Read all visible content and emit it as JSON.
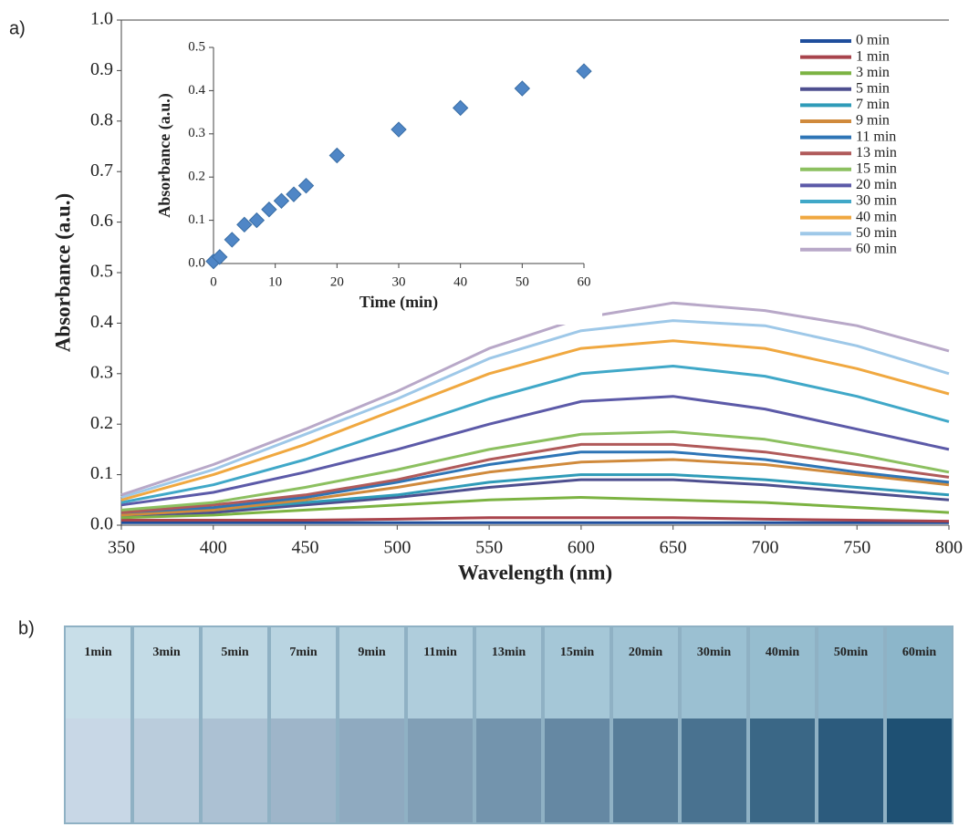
{
  "panels": {
    "a": "a)",
    "b": "b)"
  },
  "chart_data": [
    {
      "type": "line",
      "xlabel": "Wavelength (nm)",
      "ylabel": "Absorbance (a.u.)",
      "x": [
        350,
        400,
        450,
        500,
        550,
        600,
        650,
        700,
        750,
        800
      ],
      "xlim": [
        350,
        800
      ],
      "xticks": [
        350,
        400,
        450,
        500,
        550,
        600,
        650,
        700,
        750,
        800
      ],
      "ylim": [
        0,
        1
      ],
      "yticks": [
        {
          "value": 0,
          "label": "0.0"
        },
        0.1,
        0.2,
        0.3,
        0.4,
        0.5,
        0.6,
        0.7,
        0.8,
        0.9,
        {
          "value": 1,
          "label": "1.0"
        }
      ],
      "legend": "upper right",
      "series": [
        {
          "name": "0 min",
          "color": "#1f4e9c",
          "values": [
            0.005,
            0.005,
            0.005,
            0.005,
            0.005,
            0.005,
            0.005,
            0.005,
            0.005,
            0.005
          ]
        },
        {
          "name": "1 min",
          "color": "#a8444c",
          "values": [
            0.01,
            0.01,
            0.01,
            0.012,
            0.015,
            0.015,
            0.015,
            0.012,
            0.01,
            0.008
          ]
        },
        {
          "name": "3 min",
          "color": "#7cb342",
          "values": [
            0.015,
            0.02,
            0.03,
            0.04,
            0.05,
            0.055,
            0.05,
            0.045,
            0.035,
            0.025
          ]
        },
        {
          "name": "5 min",
          "color": "#4e4f8f",
          "values": [
            0.02,
            0.025,
            0.04,
            0.055,
            0.075,
            0.09,
            0.09,
            0.08,
            0.065,
            0.05
          ]
        },
        {
          "name": "7 min",
          "color": "#2f9bb8",
          "values": [
            0.02,
            0.03,
            0.045,
            0.06,
            0.085,
            0.1,
            0.1,
            0.09,
            0.075,
            0.06
          ]
        },
        {
          "name": "9 min",
          "color": "#d08a3c",
          "values": [
            0.02,
            0.03,
            0.05,
            0.075,
            0.105,
            0.125,
            0.13,
            0.12,
            0.1,
            0.08
          ]
        },
        {
          "name": "11 min",
          "color": "#2e75b6",
          "values": [
            0.025,
            0.035,
            0.055,
            0.085,
            0.12,
            0.145,
            0.145,
            0.13,
            0.105,
            0.085
          ]
        },
        {
          "name": "13 min",
          "color": "#b05a5a",
          "values": [
            0.025,
            0.04,
            0.06,
            0.09,
            0.13,
            0.16,
            0.16,
            0.145,
            0.12,
            0.095
          ]
        },
        {
          "name": "15 min",
          "color": "#8cc060",
          "values": [
            0.03,
            0.045,
            0.075,
            0.11,
            0.15,
            0.18,
            0.185,
            0.17,
            0.14,
            0.105
          ]
        },
        {
          "name": "20 min",
          "color": "#5c5aa8",
          "values": [
            0.04,
            0.065,
            0.105,
            0.15,
            0.2,
            0.245,
            0.255,
            0.23,
            0.19,
            0.15
          ]
        },
        {
          "name": "30 min",
          "color": "#40a8c8",
          "values": [
            0.045,
            0.08,
            0.13,
            0.19,
            0.25,
            0.3,
            0.315,
            0.295,
            0.255,
            0.205
          ]
        },
        {
          "name": "40 min",
          "color": "#f0a840",
          "values": [
            0.05,
            0.1,
            0.16,
            0.23,
            0.3,
            0.35,
            0.365,
            0.35,
            0.31,
            0.26
          ]
        },
        {
          "name": "50 min",
          "color": "#9ec8e8",
          "values": [
            0.055,
            0.11,
            0.18,
            0.25,
            0.33,
            0.385,
            0.405,
            0.395,
            0.355,
            0.3
          ]
        },
        {
          "name": "60 min",
          "color": "#b8a8c8",
          "values": [
            0.06,
            0.12,
            0.19,
            0.265,
            0.35,
            0.41,
            0.44,
            0.425,
            0.395,
            0.345
          ]
        }
      ]
    },
    {
      "type": "scatter",
      "xlabel": "Time (min)",
      "ylabel": "Absorbance (a.u.)",
      "x": [
        0,
        1,
        3,
        5,
        7,
        9,
        11,
        13,
        15,
        20,
        30,
        40,
        50,
        60
      ],
      "values": [
        0.005,
        0.015,
        0.055,
        0.09,
        0.1,
        0.125,
        0.145,
        0.16,
        0.18,
        0.25,
        0.31,
        0.36,
        0.405,
        0.445
      ],
      "color": "#4f86c6",
      "xlim": [
        0,
        60
      ],
      "xticks": [
        0,
        10,
        20,
        30,
        40,
        50,
        60
      ],
      "ylim": [
        0,
        0.5
      ],
      "yticks": [
        {
          "value": 0,
          "label": "0.0"
        },
        0.1,
        0.2,
        0.3,
        0.4,
        0.5
      ]
    }
  ],
  "photo": {
    "labels": [
      "1min",
      "3min",
      "5min",
      "7min",
      "9min",
      "11min",
      "13min",
      "15min",
      "20min",
      "30min",
      "40min",
      "50min",
      "60min"
    ]
  }
}
